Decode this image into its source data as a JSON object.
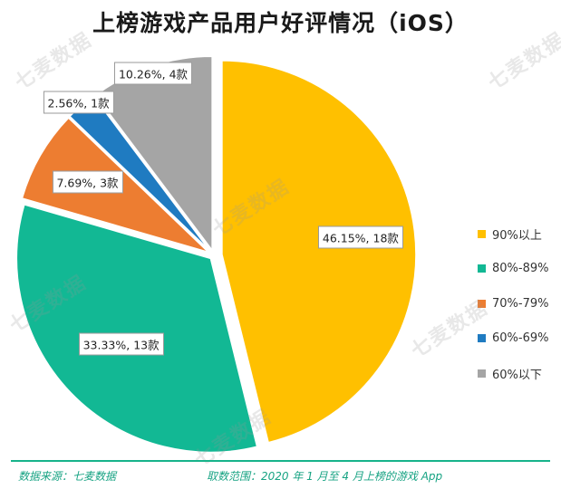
{
  "chart_data": {
    "type": "pie",
    "title": "上榜游戏产品用户好评情况（iOS）",
    "slices": [
      {
        "name": "90%以上",
        "value": 46.15,
        "count_label": "18款",
        "color": "#FFC000"
      },
      {
        "name": "80%-89%",
        "value": 33.33,
        "count_label": "13款",
        "color": "#12B894"
      },
      {
        "name": "70%-79%",
        "value": 7.69,
        "count_label": "3款",
        "color": "#ED7D31"
      },
      {
        "name": "60%-69%",
        "value": 2.56,
        "count_label": "1款",
        "color": "#1F7BC1"
      },
      {
        "name": "60%以下",
        "value": 10.26,
        "count_label": "4款",
        "color": "#A5A5A5"
      }
    ],
    "legend_position": "right"
  },
  "watermark_text": "七麦数据",
  "footer": {
    "source": "数据来源：七麦数据",
    "scope": "取数范围：2020 年 1 月至 4 月上榜的游戏 App"
  }
}
